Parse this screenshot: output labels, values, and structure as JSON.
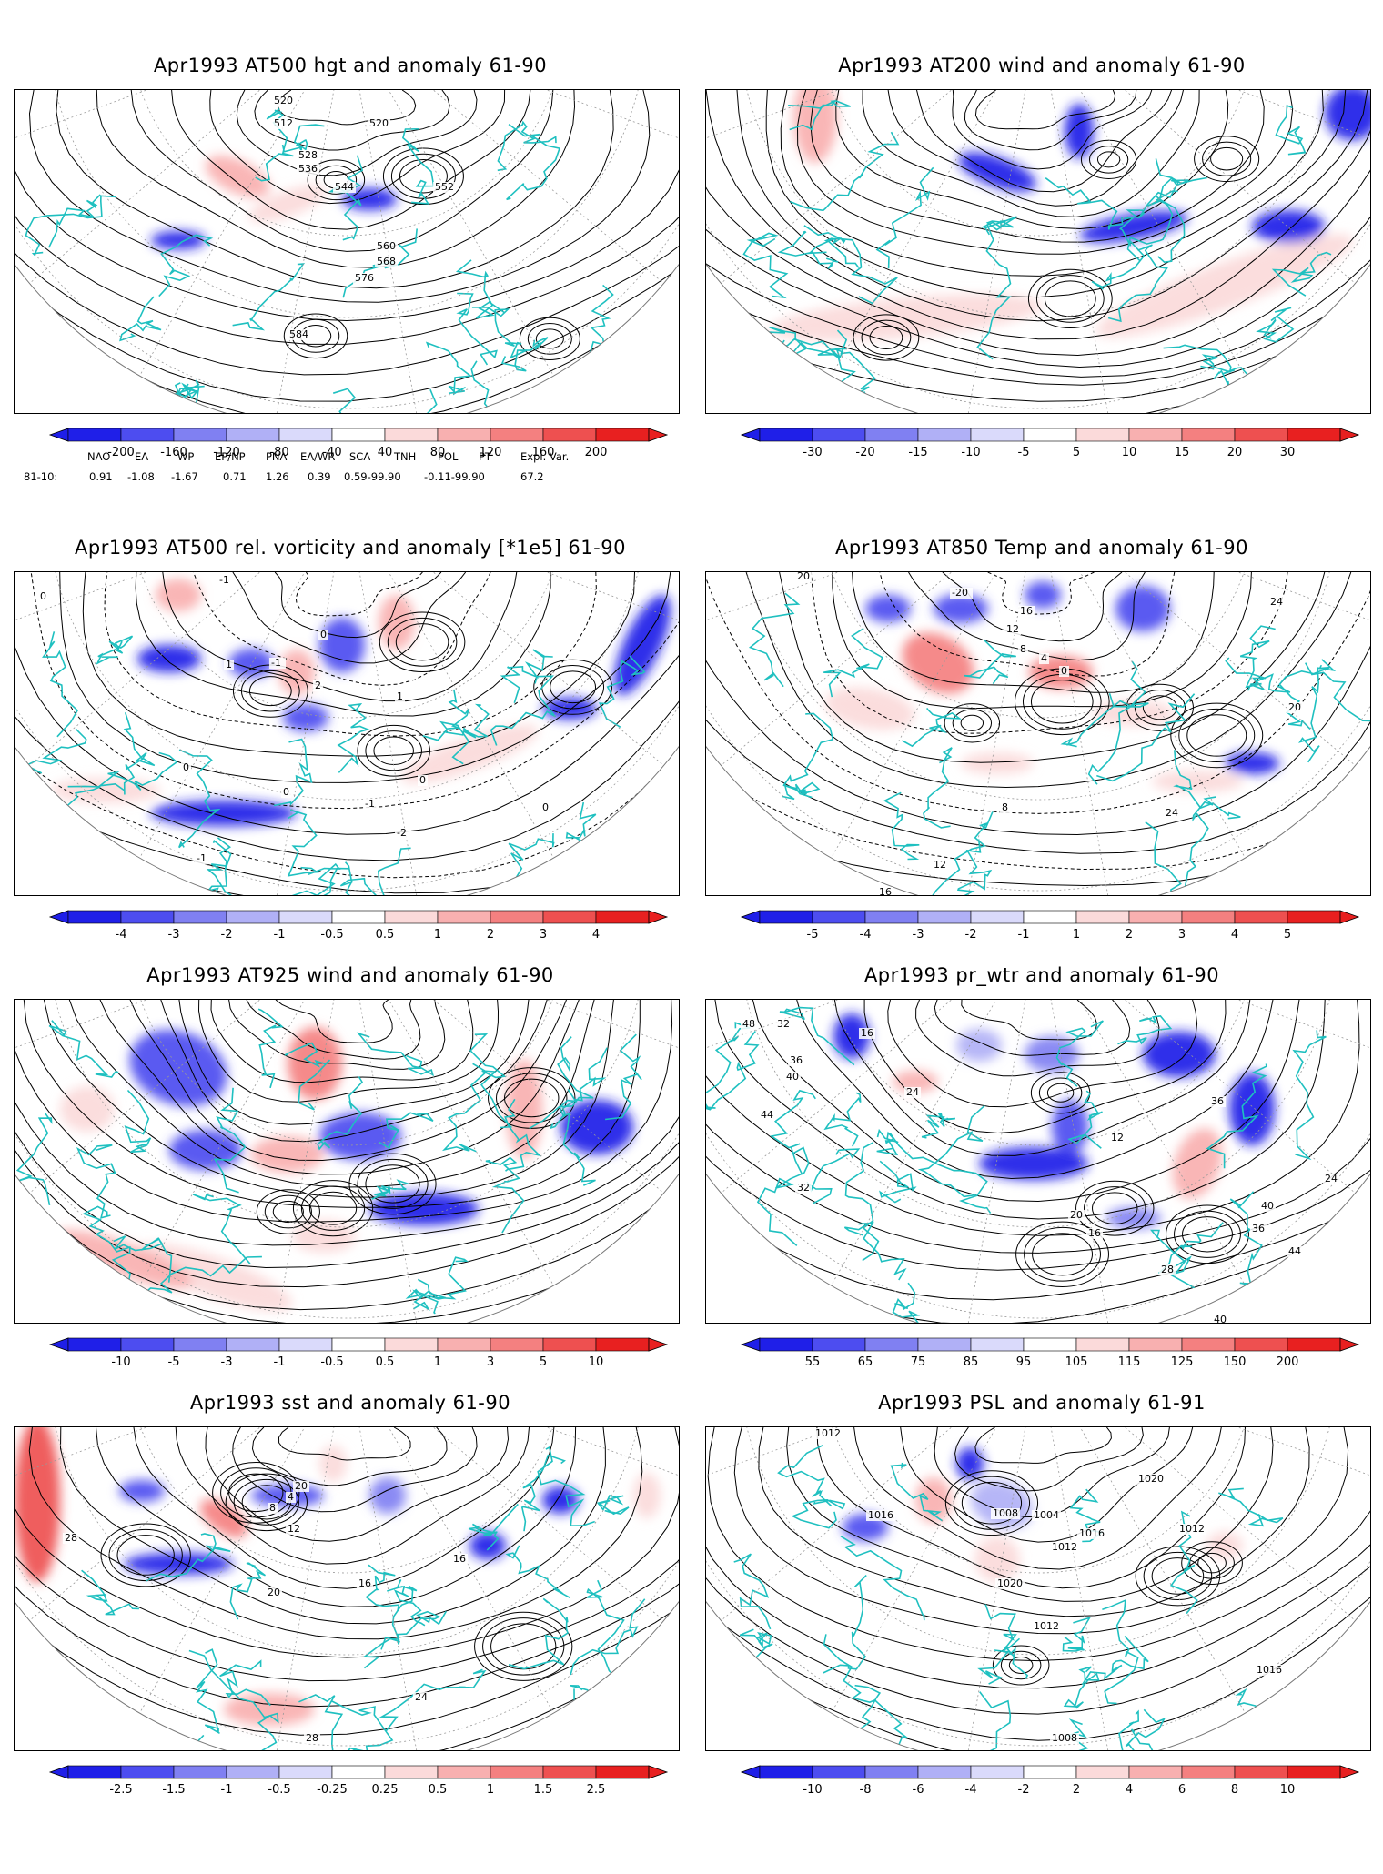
{
  "panels": [
    {
      "title": "Apr1993 AT500 hgt and anomaly 61-90",
      "colorbar": [
        "-200",
        "-160",
        "-120",
        "-80",
        "-40",
        "40",
        "80",
        "120",
        "160",
        "200"
      ],
      "contour_labels": [
        "520",
        "512",
        "520",
        "528",
        "536",
        "544",
        "552",
        "560",
        "568",
        "576",
        "584"
      ]
    },
    {
      "title": "Apr1993 AT200 wind and anomaly 61-90",
      "colorbar": [
        "-30",
        "-20",
        "-15",
        "-10",
        "-5",
        "5",
        "10",
        "15",
        "20",
        "30"
      ],
      "contour_labels": []
    },
    {
      "title": "Apr1993 AT500 rel. vorticity and anomaly [*1e5] 61-90",
      "colorbar": [
        "-4",
        "-3",
        "-2",
        "-1",
        "-0.5",
        "0.5",
        "1",
        "2",
        "3",
        "4"
      ],
      "contour_labels": [
        "0",
        "-1",
        "1",
        "-1",
        "0",
        "2",
        "0",
        "1",
        "-1",
        "0",
        "-2",
        "-1",
        "0",
        "0"
      ]
    },
    {
      "title": "Apr1993 AT850 Temp and anomaly 61-90",
      "colorbar": [
        "-5",
        "-4",
        "-3",
        "-2",
        "-1",
        "1",
        "2",
        "3",
        "4",
        "5"
      ],
      "contour_labels": [
        "20",
        "-20",
        "16",
        "12",
        "8",
        "4",
        "0",
        "24",
        "20",
        "8",
        "12",
        "16",
        "24",
        "24",
        "20"
      ]
    },
    {
      "title": "Apr1993 AT925 wind and anomaly 61-90",
      "colorbar": [
        "-10",
        "-5",
        "-3",
        "-1",
        "-0.5",
        "0.5",
        "1",
        "3",
        "5",
        "10"
      ],
      "contour_labels": []
    },
    {
      "title": "Apr1993 pr_wtr and anomaly 61-90",
      "colorbar": [
        "55",
        "65",
        "75",
        "85",
        "95",
        "105",
        "115",
        "125",
        "150",
        "200"
      ],
      "contour_labels": [
        "48",
        "32",
        "36",
        "40",
        "44",
        "24",
        "16",
        "12",
        "20",
        "36",
        "40",
        "44",
        "36",
        "16",
        "40",
        "28",
        "32",
        "24"
      ]
    },
    {
      "title": "Apr1993 sst and anomaly 61-90",
      "colorbar": [
        "-2.5",
        "-1.5",
        "-1",
        "-0.5",
        "-0.25",
        "0.25",
        "0.5",
        "1",
        "1.5",
        "2.5"
      ],
      "contour_labels": [
        "28",
        "20",
        "12",
        "8",
        "4",
        "16",
        "20",
        "24",
        "28",
        "16"
      ]
    },
    {
      "title": "Apr1993 PSL and anomaly 61-91",
      "colorbar": [
        "-10",
        "-8",
        "-6",
        "-4",
        "-2",
        "2",
        "4",
        "6",
        "8",
        "10"
      ],
      "contour_labels": [
        "1012",
        "1016",
        "1020",
        "1008",
        "1004",
        "1012",
        "1016",
        "1020",
        "1012",
        "1016",
        "1008",
        "1012"
      ]
    }
  ],
  "teleconnection": {
    "headers": [
      "NAO",
      "EA",
      "WP",
      "EP/NP",
      "PNA",
      "EA/WR",
      "SCA",
      "TNH",
      "POL",
      "PT",
      "Expl. Var."
    ],
    "row_label": "81-10:",
    "values": [
      "0.91",
      "-1.08",
      "-1.67",
      "0.71",
      "1.26",
      "0.39",
      "0.59-99.90",
      "-0.11-99.90",
      "67.2"
    ]
  },
  "colors": {
    "coast": "#1fc0c0",
    "contour": "#000000",
    "neg": [
      "#1f1fe8",
      "#4d4df0",
      "#8080f2",
      "#b0b0f6",
      "#dadafb"
    ],
    "pos": [
      "#fbdada",
      "#f8b0b0",
      "#f48080",
      "#ee5050",
      "#e82020"
    ]
  }
}
